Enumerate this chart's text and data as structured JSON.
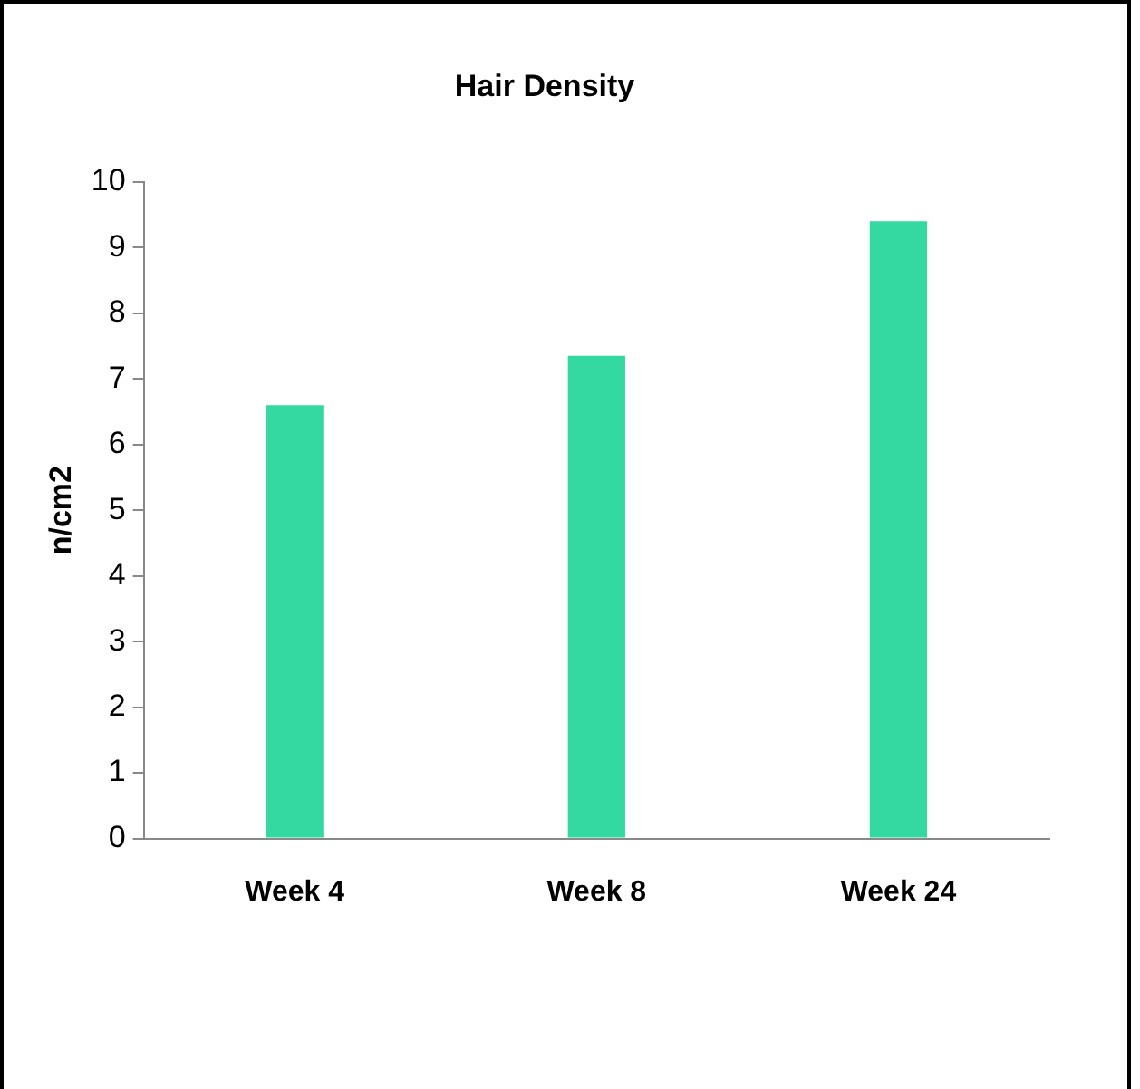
{
  "chart_data": {
    "type": "bar",
    "title": "Hair Density",
    "ylabel": "n/cm2",
    "categories": [
      "Week 4",
      "Week 8",
      "Week 24"
    ],
    "values": [
      6.6,
      7.35,
      9.4
    ],
    "color": "#33d9a0",
    "ylim": [
      0,
      10
    ],
    "yticks": [
      0,
      1,
      2,
      3,
      4,
      5,
      6,
      7,
      8,
      9,
      10
    ],
    "grid": false,
    "legend": false
  }
}
